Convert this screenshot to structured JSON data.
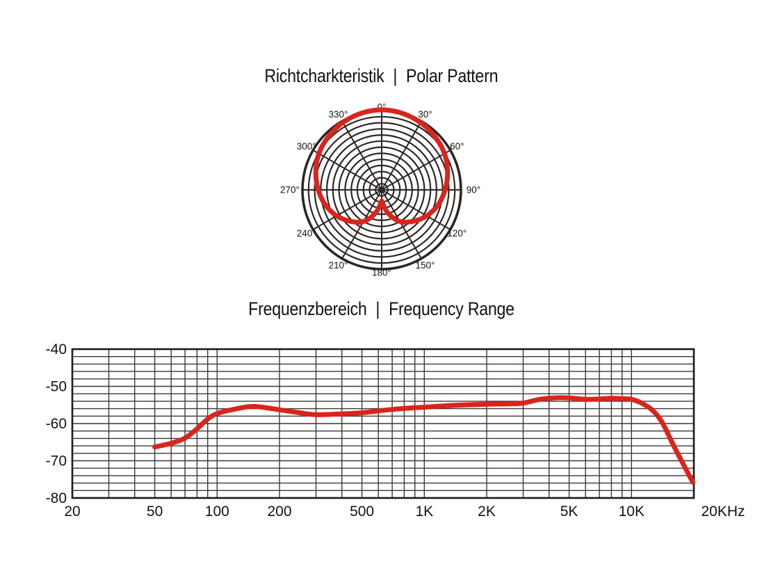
{
  "polar": {
    "title_de": "Richtcharkteristik",
    "title_sep": "|",
    "title_en": "Polar Pattern"
  },
  "freq": {
    "title_de": "Frequenzbereich",
    "title_sep": "|",
    "title_en": "Frequency Range"
  },
  "colors": {
    "curve_red": "#d9251c",
    "polar_grid": "#2b2624",
    "freq_grid": "#3b3734",
    "border": "#1c1917",
    "text": "#141210",
    "background": "#ffffff"
  },
  "chart_data": [
    {
      "type": "polar",
      "title": "Richtcharkteristik | Polar Pattern",
      "pattern": "cardioid",
      "angle_labels": [
        "0°",
        "30°",
        "60°",
        "90°",
        "120°",
        "150°",
        "180°",
        "210°",
        "240°",
        "270°",
        "300°",
        "330°"
      ],
      "angle_step_deg": 30,
      "rings": 13,
      "spoke_step_deg": 30,
      "symmetric": true,
      "pattern_points": {
        "angles_deg": [
          0,
          15,
          30,
          45,
          60,
          75,
          90,
          105,
          120,
          135,
          150,
          165,
          180
        ],
        "radius_norm": [
          1.01,
          1.0,
          0.98,
          0.95,
          0.915,
          0.86,
          0.8,
          0.735,
          0.655,
          0.56,
          0.46,
          0.3,
          0.14
        ]
      }
    },
    {
      "type": "line",
      "title": "Frequenzbereich | Frequency Range",
      "x_scale": "log",
      "x_range_hz": [
        20,
        20000
      ],
      "y_range_db": [
        -80,
        -40
      ],
      "y_tick_step_db": 2,
      "y_major_ticks": [
        {
          "db": -40,
          "label": "-40"
        },
        {
          "db": -50,
          "label": "-50"
        },
        {
          "db": -60,
          "label": "-60"
        },
        {
          "db": -70,
          "label": "-70"
        },
        {
          "db": -80,
          "label": "-80"
        }
      ],
      "x_tick_labels": [
        {
          "hz": 20,
          "label": "20"
        },
        {
          "hz": 50,
          "label": "50"
        },
        {
          "hz": 100,
          "label": "100"
        },
        {
          "hz": 200,
          "label": "200"
        },
        {
          "hz": 500,
          "label": "500"
        },
        {
          "hz": 1000,
          "label": "1K"
        },
        {
          "hz": 2000,
          "label": "2K"
        },
        {
          "hz": 5000,
          "label": "5K"
        },
        {
          "hz": 10000,
          "label": "10K"
        },
        {
          "hz": 20000,
          "label": "20KHz",
          "outside": true
        }
      ],
      "grid_freqs_hz": [
        20,
        30,
        40,
        50,
        60,
        70,
        80,
        90,
        100,
        200,
        300,
        400,
        500,
        600,
        700,
        800,
        900,
        1000,
        2000,
        3000,
        4000,
        5000,
        6000,
        7000,
        8000,
        9000,
        10000,
        20000
      ],
      "grid": true,
      "legend": false,
      "response_db_vs_hz": [
        [
          50,
          -66.3
        ],
        [
          60,
          -65.3
        ],
        [
          70,
          -63.9
        ],
        [
          80,
          -61.4
        ],
        [
          90,
          -58.8
        ],
        [
          100,
          -57.3
        ],
        [
          120,
          -56.2
        ],
        [
          150,
          -55.4
        ],
        [
          200,
          -56.3
        ],
        [
          250,
          -57.1
        ],
        [
          300,
          -57.6
        ],
        [
          400,
          -57.4
        ],
        [
          500,
          -57.1
        ],
        [
          700,
          -56.2
        ],
        [
          1000,
          -55.6
        ],
        [
          1400,
          -55.1
        ],
        [
          2000,
          -54.8
        ],
        [
          2600,
          -54.7
        ],
        [
          3000,
          -54.5
        ],
        [
          3600,
          -53.5
        ],
        [
          4200,
          -53.1
        ],
        [
          5000,
          -53.1
        ],
        [
          6000,
          -53.5
        ],
        [
          7000,
          -53.4
        ],
        [
          8000,
          -53.2
        ],
        [
          9000,
          -53.3
        ],
        [
          10000,
          -53.5
        ],
        [
          11000,
          -54.3
        ],
        [
          12500,
          -56.2
        ],
        [
          14000,
          -59.5
        ],
        [
          16000,
          -66
        ],
        [
          18000,
          -71.5
        ],
        [
          19800,
          -75.8
        ]
      ]
    }
  ]
}
